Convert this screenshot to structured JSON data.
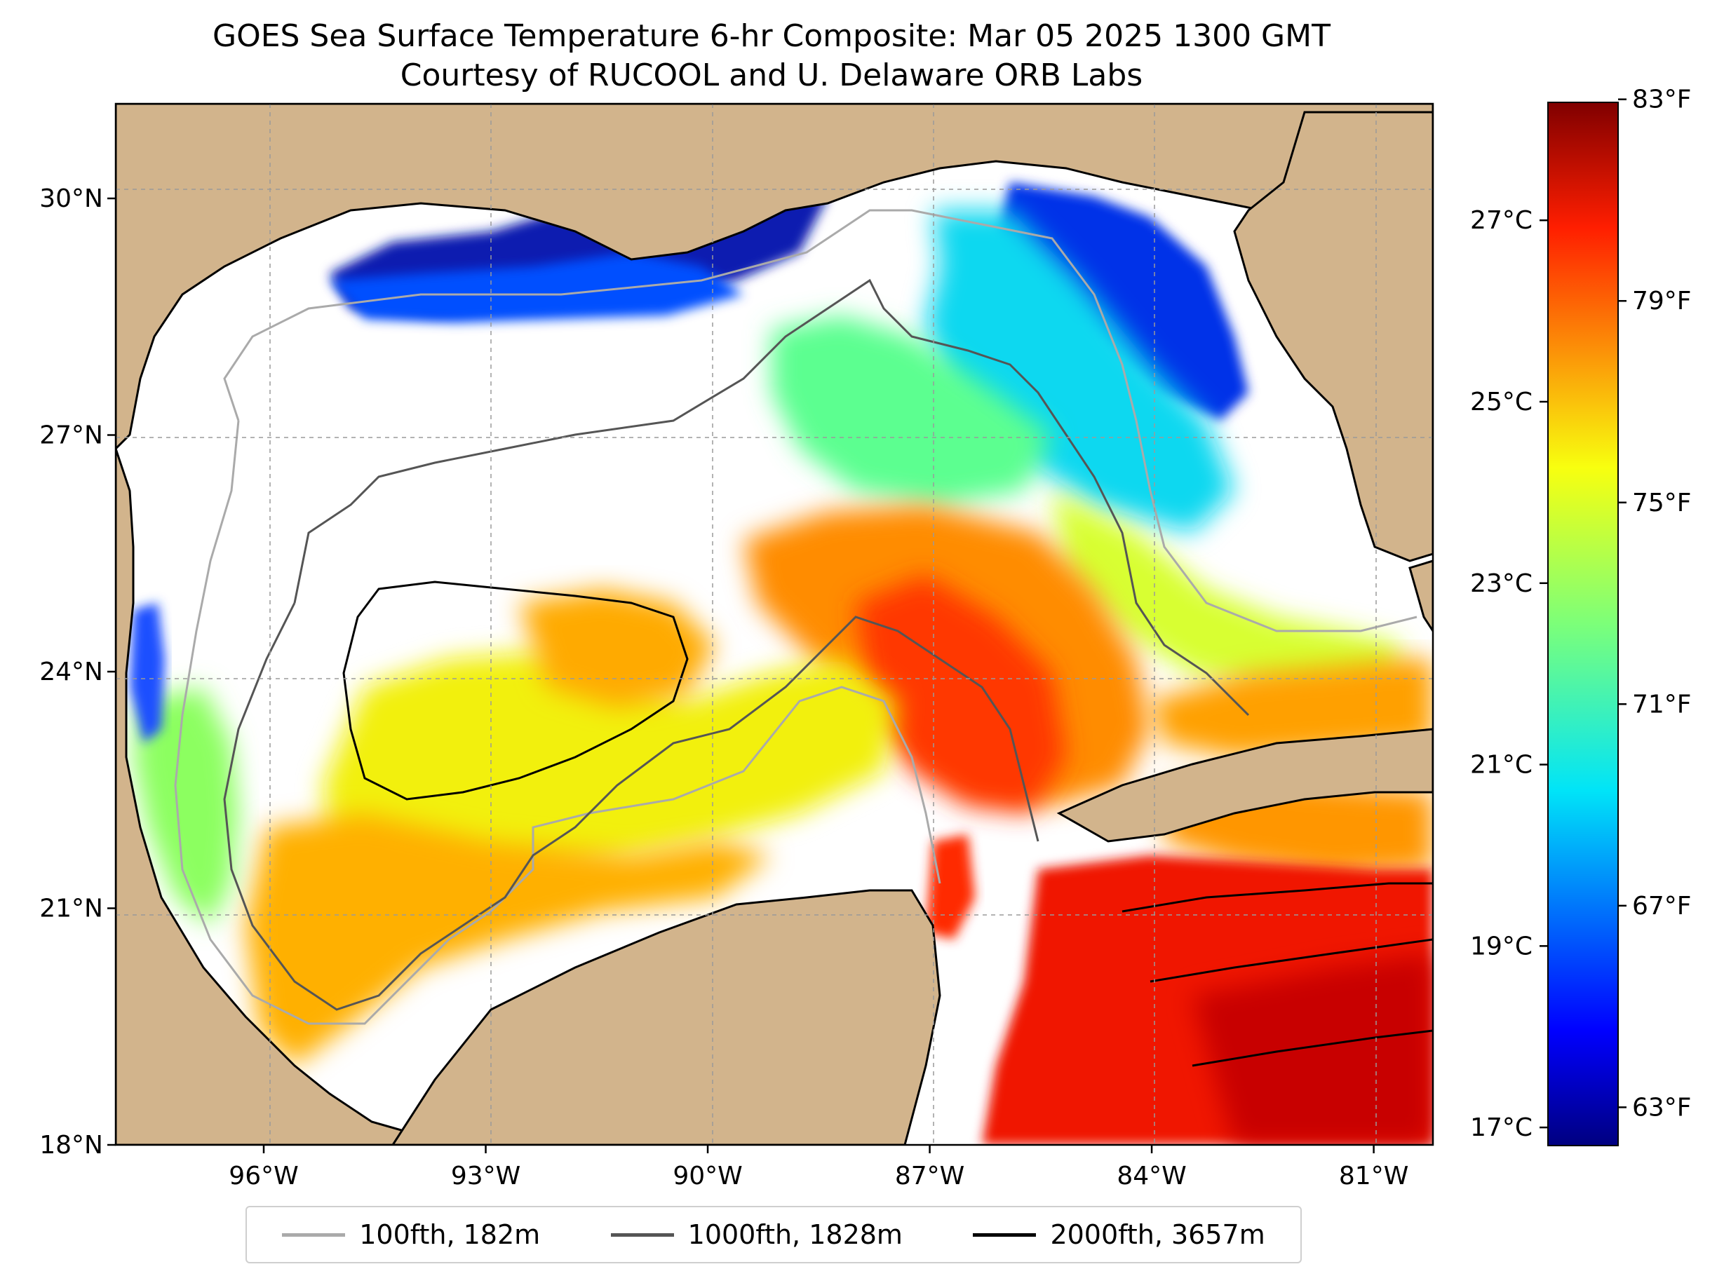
{
  "title": {
    "line1": "GOES Sea Surface Temperature 6-hr Composite: Mar 05 2025 1300 GMT",
    "line2": "Courtesy of RUCOOL and U. Delaware ORB Labs"
  },
  "map": {
    "lat_range": [
      18,
      31.2
    ],
    "lon_range": [
      -98,
      -80.2
    ],
    "lat_ticks": [
      {
        "value": 18,
        "label": "18°N"
      },
      {
        "value": 21,
        "label": "21°N"
      },
      {
        "value": 24,
        "label": "24°N"
      },
      {
        "value": 27,
        "label": "27°N"
      },
      {
        "value": 30,
        "label": "30°N"
      }
    ],
    "lon_ticks": [
      {
        "value": -96,
        "label": "96°W"
      },
      {
        "value": -93,
        "label": "93°W"
      },
      {
        "value": -90,
        "label": "90°W"
      },
      {
        "value": -87,
        "label": "87°W"
      },
      {
        "value": -84,
        "label": "84°W"
      },
      {
        "value": -81,
        "label": "81°W"
      }
    ],
    "gridlines": "dashed",
    "land_color": "#d2b48c",
    "no_data_color": "#ffffff"
  },
  "colorbar": {
    "colormap": "jet",
    "range_c": [
      16.8,
      28.3
    ],
    "celsius_ticks": [
      {
        "value": 17,
        "label": "17°C"
      },
      {
        "value": 19,
        "label": "19°C"
      },
      {
        "value": 21,
        "label": "21°C"
      },
      {
        "value": 23,
        "label": "23°C"
      },
      {
        "value": 25,
        "label": "25°C"
      },
      {
        "value": 27,
        "label": "27°C"
      }
    ],
    "fahrenheit_ticks": [
      {
        "value": 63,
        "label": "63°F"
      },
      {
        "value": 67,
        "label": "67°F"
      },
      {
        "value": 71,
        "label": "71°F"
      },
      {
        "value": 75,
        "label": "75°F"
      },
      {
        "value": 79,
        "label": "79°F"
      },
      {
        "value": 83,
        "label": "83°F"
      }
    ]
  },
  "legend": {
    "items": [
      {
        "label": "100fth, 182m",
        "color": "#aaaaaa"
      },
      {
        "label": "1000fth, 1828m",
        "color": "#555555"
      },
      {
        "label": "2000fth, 3657m",
        "color": "#000000"
      }
    ]
  }
}
